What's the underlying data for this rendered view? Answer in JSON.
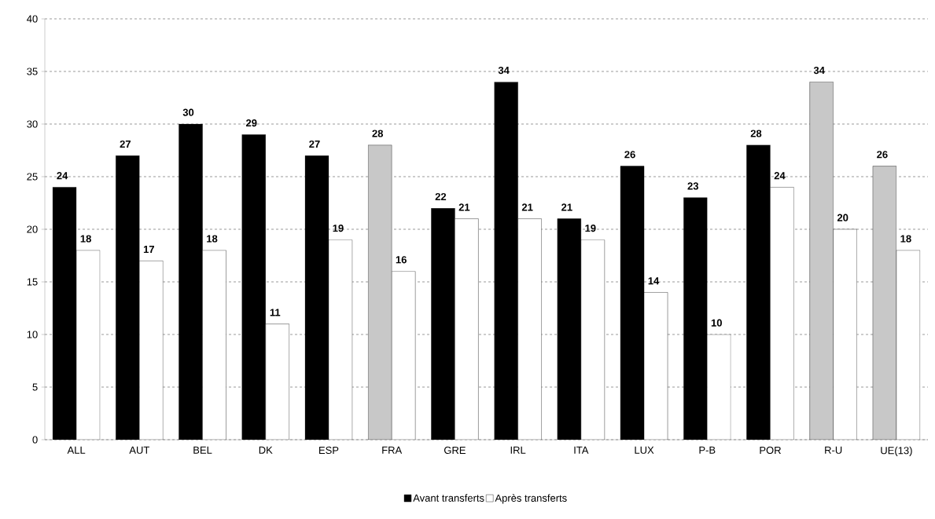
{
  "chart_data": {
    "type": "bar",
    "categories": [
      "ALL",
      "AUT",
      "BEL",
      "DK",
      "ESP",
      "FRA",
      "GRE",
      "IRL",
      "ITA",
      "LUX",
      "P-B",
      "POR",
      "R-U",
      "UE(13)"
    ],
    "series": [
      {
        "name": "Avant transferts",
        "color": "#000000",
        "colors": [
          "#000000",
          "#000000",
          "#000000",
          "#000000",
          "#000000",
          "#c8c8c8",
          "#000000",
          "#000000",
          "#000000",
          "#000000",
          "#000000",
          "#000000",
          "#c8c8c8",
          "#c8c8c8"
        ],
        "values": [
          24,
          27,
          30,
          29,
          27,
          28,
          22,
          34,
          21,
          26,
          23,
          28,
          34,
          26
        ]
      },
      {
        "name": "Après transferts",
        "color": "#ffffff",
        "values": [
          18,
          17,
          18,
          11,
          19,
          16,
          21,
          21,
          19,
          14,
          10,
          24,
          20,
          18
        ]
      }
    ],
    "ylim": [
      0,
      40
    ],
    "yticks": [
      0,
      5,
      10,
      15,
      20,
      25,
      30,
      35,
      40
    ],
    "grid": "y",
    "legend": "bottom",
    "data_labels": true
  }
}
